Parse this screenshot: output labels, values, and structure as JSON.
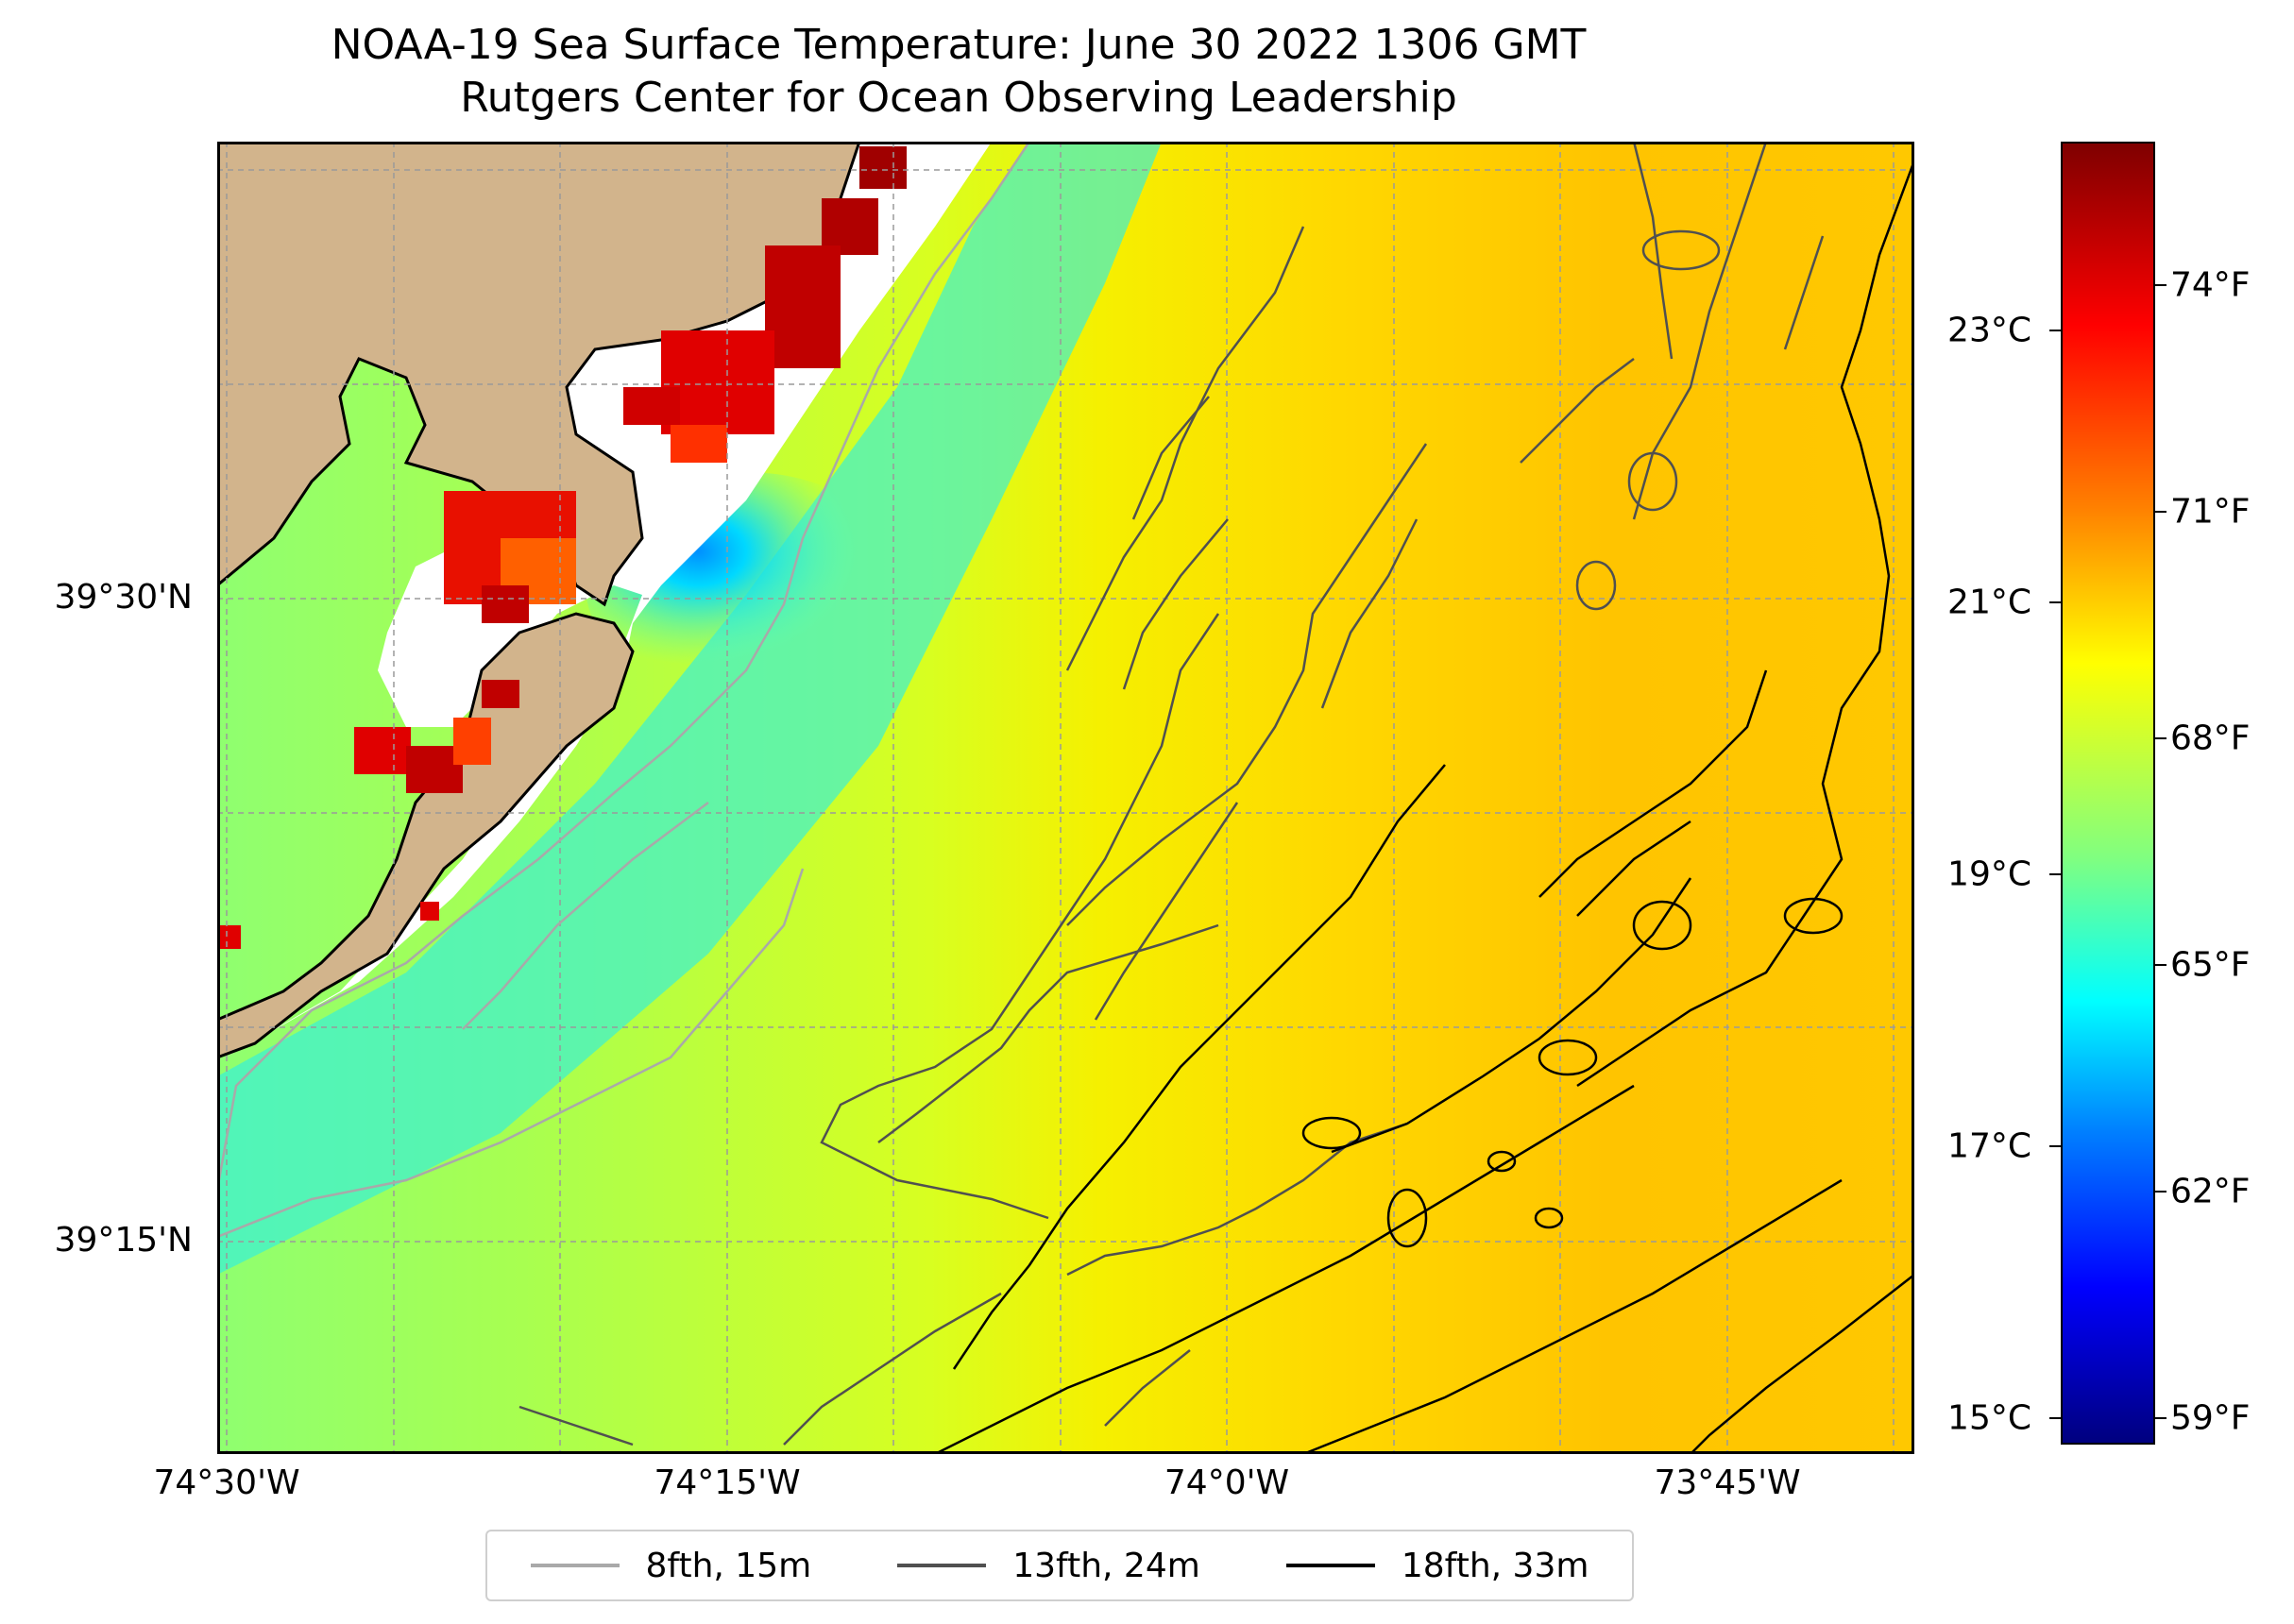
{
  "title": {
    "line1": "NOAA-19 Sea Surface Temperature: June 30 2022 1306 GMT",
    "line2": "Rutgers Center for Ocean Observing Leadership"
  },
  "map": {
    "lat_labels": [
      "39°30'N",
      "39°15'N"
    ],
    "lon_labels": [
      "74°30'W",
      "74°15'W",
      "74°0'W",
      "73°45'W"
    ],
    "land_color": "#d2b48c",
    "ocean_colors": {
      "cold": "#00e5ff",
      "mid": "#b0ff40",
      "warm": "#ffc000"
    }
  },
  "legend": {
    "items": [
      {
        "label": "8fth, 15m",
        "color": "#a9a9a9"
      },
      {
        "label": "13fth, 24m",
        "color": "#505050"
      },
      {
        "label": "18fth, 33m",
        "color": "#000000"
      }
    ]
  },
  "colorbar": {
    "celsius_ticks": [
      "23°C",
      "21°C",
      "19°C",
      "17°C",
      "15°C"
    ],
    "fahrenheit_ticks": [
      "74°F",
      "71°F",
      "68°F",
      "65°F",
      "62°F",
      "59°F"
    ]
  }
}
